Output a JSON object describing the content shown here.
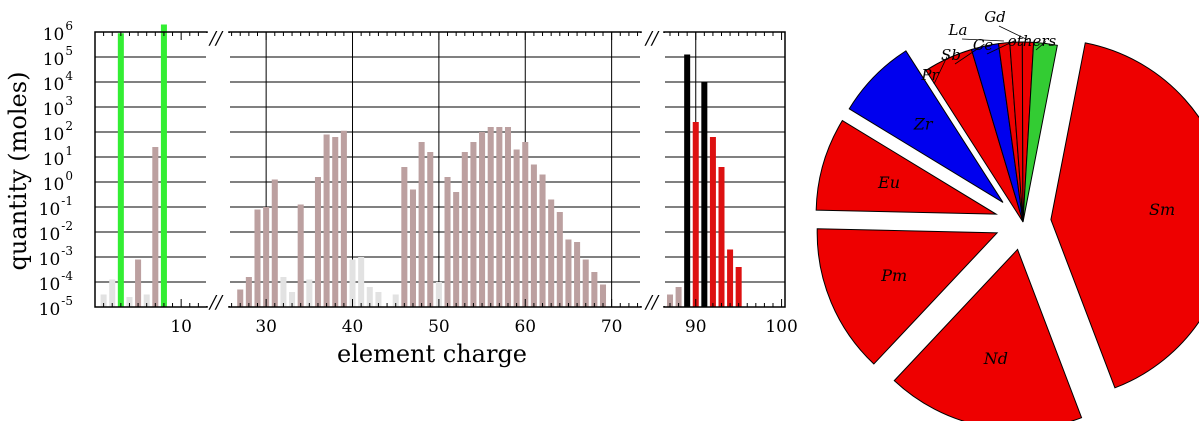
{
  "chart_data": [
    {
      "type": "bar",
      "xlabel": "element charge",
      "ylabel": "quantity (moles)",
      "yscale": "log",
      "ylim": [
        -5,
        6
      ],
      "y_ticks": [
        {
          "base": "10",
          "exp": "6"
        },
        {
          "base": "10",
          "exp": "5"
        },
        {
          "base": "10",
          "exp": "4"
        },
        {
          "base": "10",
          "exp": "3"
        },
        {
          "base": "10",
          "exp": "2"
        },
        {
          "base": "10",
          "exp": "1"
        },
        {
          "base": "10",
          "exp": "0"
        },
        {
          "base": "10",
          "exp": "-1"
        },
        {
          "base": "10",
          "exp": "-2"
        },
        {
          "base": "10",
          "exp": "-3"
        },
        {
          "base": "10",
          "exp": "-4"
        },
        {
          "base": "10",
          "exp": "-5"
        }
      ],
      "x_ticks": [
        "10",
        "30",
        "40",
        "50",
        "60",
        "70",
        "90",
        "100"
      ],
      "break_mark": "//",
      "grid": true,
      "colors": {
        "light": "#e2e2e2",
        "fission": "#bca0a0",
        "green": "#33ee33",
        "actinide": "#000000",
        "transuranic": "#dd1111"
      },
      "panels": [
        {
          "name": "light",
          "xlim": [
            0,
            13
          ],
          "bars": [
            {
              "z": 1,
              "log": -4.5,
              "color": "light"
            },
            {
              "z": 2,
              "log": -3.9,
              "color": "light"
            },
            {
              "z": 3,
              "log": 5.95,
              "color": "green"
            },
            {
              "z": 4,
              "log": -4.6,
              "color": "light"
            },
            {
              "z": 5,
              "log": -3.1,
              "color": "fission"
            },
            {
              "z": 6,
              "log": -4.5,
              "color": "light"
            },
            {
              "z": 7,
              "log": 1.4,
              "color": "fission"
            },
            {
              "z": 8,
              "log": 6.3,
              "color": "green"
            }
          ]
        },
        {
          "name": "middle",
          "xlim": [
            25.7,
            73.4
          ],
          "bars": [
            {
              "z": 27,
              "log": -4.3,
              "color": "fission"
            },
            {
              "z": 28,
              "log": -3.8,
              "color": "fission"
            },
            {
              "z": 29,
              "log": -1.1,
              "color": "fission"
            },
            {
              "z": 30,
              "log": -1.0,
              "color": "fission"
            },
            {
              "z": 31,
              "log": 0.1,
              "color": "fission"
            },
            {
              "z": 32,
              "log": -3.8,
              "color": "light"
            },
            {
              "z": 33,
              "log": -4.4,
              "color": "light"
            },
            {
              "z": 34,
              "log": -0.9,
              "color": "fission"
            },
            {
              "z": 35,
              "log": -3.9,
              "color": "light"
            },
            {
              "z": 36,
              "log": 0.2,
              "color": "fission"
            },
            {
              "z": 37,
              "log": 1.9,
              "color": "fission"
            },
            {
              "z": 38,
              "log": 1.8,
              "color": "fission"
            },
            {
              "z": 39,
              "log": 2.05,
              "color": "fission"
            },
            {
              "z": 40,
              "log": -3.1,
              "color": "light"
            },
            {
              "z": 41,
              "log": -3.0,
              "color": "light"
            },
            {
              "z": 42,
              "log": -4.2,
              "color": "light"
            },
            {
              "z": 43,
              "log": -4.4,
              "color": "light"
            },
            {
              "z": 45,
              "log": -4.5,
              "color": "light"
            },
            {
              "z": 46,
              "log": 0.6,
              "color": "fission"
            },
            {
              "z": 47,
              "log": -0.3,
              "color": "fission"
            },
            {
              "z": 48,
              "log": 1.6,
              "color": "fission"
            },
            {
              "z": 49,
              "log": 1.2,
              "color": "fission"
            },
            {
              "z": 50,
              "log": -4.0,
              "color": "light"
            },
            {
              "z": 51,
              "log": 0.2,
              "color": "fission"
            },
            {
              "z": 52,
              "log": -0.4,
              "color": "fission"
            },
            {
              "z": 53,
              "log": 1.2,
              "color": "fission"
            },
            {
              "z": 54,
              "log": 1.6,
              "color": "fission"
            },
            {
              "z": 55,
              "log": 2.0,
              "color": "fission"
            },
            {
              "z": 56,
              "log": 2.2,
              "color": "fission"
            },
            {
              "z": 57,
              "log": 2.2,
              "color": "fission"
            },
            {
              "z": 58,
              "log": 2.2,
              "color": "fission"
            },
            {
              "z": 59,
              "log": 1.3,
              "color": "fission"
            },
            {
              "z": 60,
              "log": 1.6,
              "color": "fission"
            },
            {
              "z": 61,
              "log": 0.7,
              "color": "fission"
            },
            {
              "z": 62,
              "log": 0.3,
              "color": "fission"
            },
            {
              "z": 63,
              "log": -0.7,
              "color": "fission"
            },
            {
              "z": 64,
              "log": -1.2,
              "color": "fission"
            },
            {
              "z": 65,
              "log": -2.3,
              "color": "fission"
            },
            {
              "z": 66,
              "log": -2.4,
              "color": "fission"
            },
            {
              "z": 67,
              "log": -3.1,
              "color": "fission"
            },
            {
              "z": 68,
              "log": -3.6,
              "color": "fission"
            },
            {
              "z": 69,
              "log": -4.1,
              "color": "fission"
            }
          ]
        },
        {
          "name": "heavy",
          "xlim": [
            86.3,
            100.4
          ],
          "bars": [
            {
              "z": 87,
              "log": -4.5,
              "color": "fission"
            },
            {
              "z": 88,
              "log": -4.2,
              "color": "fission"
            },
            {
              "z": 89,
              "log": 5.1,
              "color": "actinide"
            },
            {
              "z": 90,
              "log": 2.4,
              "color": "transuranic"
            },
            {
              "z": 91,
              "log": 4.0,
              "color": "actinide"
            },
            {
              "z": 92,
              "log": 1.8,
              "color": "transuranic"
            },
            {
              "z": 93,
              "log": 0.6,
              "color": "transuranic"
            },
            {
              "z": 94,
              "log": -2.7,
              "color": "transuranic"
            },
            {
              "z": 95,
              "log": -3.4,
              "color": "transuranic"
            }
          ]
        }
      ]
    },
    {
      "type": "pie",
      "slices": [
        {
          "label": "Sm",
          "value": 37.0,
          "color": "#ee0000",
          "explode": true
        },
        {
          "label": "Nd",
          "value": 16.0,
          "color": "#ee0000",
          "explode": true
        },
        {
          "label": "Pm",
          "value": 12.0,
          "color": "#ee0000",
          "explode": true
        },
        {
          "label": "Eu",
          "value": 7.5,
          "color": "#ee0000",
          "explode": true
        },
        {
          "label": "Zr",
          "value": 6.5,
          "color": "#0000ee",
          "explode": true
        },
        {
          "label": "Pr",
          "value": 4.0,
          "color": "#ee0000",
          "explode": false
        },
        {
          "label": "Sb",
          "value": 2.2,
          "color": "#0000ee",
          "explode": false
        },
        {
          "label": "La",
          "value": 0.9,
          "color": "#ee0000",
          "explode": false
        },
        {
          "label": "Ce",
          "value": 1.0,
          "color": "#ee0000",
          "explode": false
        },
        {
          "label": "Gd",
          "value": 0.9,
          "color": "#ee0000",
          "explode": false
        },
        {
          "label": "others",
          "value": 1.9,
          "color": "#33cc33",
          "explode": false
        }
      ]
    }
  ]
}
